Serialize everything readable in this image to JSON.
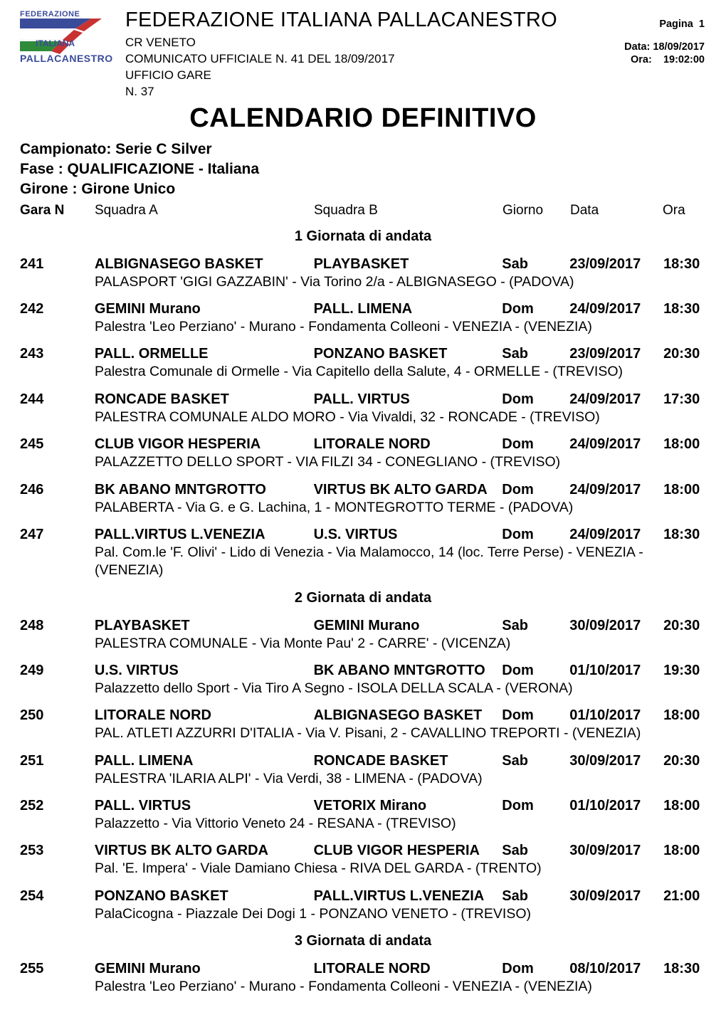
{
  "logo": {
    "line1": "FEDERAZIONE",
    "line2": "ITALIANA",
    "line3": "PALLACANESTRO",
    "colors": {
      "navy": "#3a4b9a",
      "red": "#c83232",
      "white": "#ffffff",
      "green": "#2f8b3a"
    }
  },
  "header": {
    "federation_title": "FEDERAZIONE ITALIANA PALLACANESTRO",
    "cr": "CR VENETO",
    "comunicato": "COMUNICATO UFFICIALE N. 41 DEL 18/09/2017",
    "ufficio": "UFFICIO GARE",
    "numero": "N. 37",
    "pagina_label": "Pagina",
    "pagina_value": "1",
    "data_label": "Data:",
    "data_value": "18/09/2017",
    "ora_label": "Ora:",
    "ora_value": "19:02:00"
  },
  "big_title": "CALENDARIO DEFINITIVO",
  "campionato": {
    "l1": "Campionato: Serie C Silver",
    "l2": "Fase : QUALIFICAZIONE - Italiana",
    "l3": "Girone : Girone Unico"
  },
  "columns": {
    "gara_n": "Gara N",
    "squadra_a": "Squadra A",
    "squadra_b": "Squadra B",
    "giorno": "Giorno",
    "data": "Data",
    "ora": "Ora"
  },
  "rounds": [
    {
      "title": "1 Giornata di andata",
      "matches": [
        {
          "n": "241",
          "home": "ALBIGNASEGO BASKET",
          "away": "PLAYBASKET",
          "day": "Sab",
          "date": "23/09/2017",
          "time": "18:30",
          "venue": "PALASPORT 'GIGI GAZZABIN' - Via Torino 2/a - ALBIGNASEGO - (PADOVA)"
        },
        {
          "n": "242",
          "home": "GEMINI Murano",
          "away": "PALL. LIMENA",
          "day": "Dom",
          "date": "24/09/2017",
          "time": "18:30",
          "venue": "Palestra 'Leo Perziano' - Murano - Fondamenta Colleoni - VENEZIA - (VENEZIA)"
        },
        {
          "n": "243",
          "home": "PALL. ORMELLE",
          "away": "PONZANO BASKET",
          "day": "Sab",
          "date": "23/09/2017",
          "time": "20:30",
          "venue": "Palestra Comunale di Ormelle - Via Capitello della Salute, 4 - ORMELLE - (TREVISO)"
        },
        {
          "n": "244",
          "home": "RONCADE BASKET",
          "away": "PALL. VIRTUS",
          "day": "Dom",
          "date": "24/09/2017",
          "time": "17:30",
          "venue": "PALESTRA COMUNALE ALDO MORO - Via Vivaldi, 32 - RONCADE - (TREVISO)"
        },
        {
          "n": "245",
          "home": "CLUB VIGOR HESPERIA",
          "away": "LITORALE NORD",
          "day": "Dom",
          "date": "24/09/2017",
          "time": "18:00",
          "venue": "PALAZZETTO DELLO SPORT - VIA FILZI 34 - CONEGLIANO - (TREVISO)"
        },
        {
          "n": "246",
          "home": "BK ABANO MNTGROTTO",
          "away": "VIRTUS BK ALTO GARDA",
          "day": "Dom",
          "date": "24/09/2017",
          "time": "18:00",
          "venue": "PALABERTA - Via  G. e G. Lachina,  1 - MONTEGROTTO TERME - (PADOVA)"
        },
        {
          "n": "247",
          "home": "PALL.VIRTUS L.VENEZIA",
          "away": "U.S. VIRTUS",
          "day": "Dom",
          "date": "24/09/2017",
          "time": "18:30",
          "venue": "Pal. Com.le 'F. Olivi' - Lido di Venezia - Via Malamocco, 14 (loc. Terre Perse) - VENEZIA - (VENEZIA)"
        }
      ]
    },
    {
      "title": "2 Giornata di andata",
      "matches": [
        {
          "n": "248",
          "home": "PLAYBASKET",
          "away": "GEMINI Murano",
          "day": "Sab",
          "date": "30/09/2017",
          "time": "20:30",
          "venue": "PALESTRA COMUNALE - Via Monte Pau' 2 - CARRE' - (VICENZA)"
        },
        {
          "n": "249",
          "home": "U.S. VIRTUS",
          "away": "BK ABANO MNTGROTTO",
          "day": "Dom",
          "date": "01/10/2017",
          "time": "19:30",
          "venue": "Palazzetto dello Sport - Via Tiro A Segno - ISOLA DELLA SCALA - (VERONA)"
        },
        {
          "n": "250",
          "home": "LITORALE NORD",
          "away": "ALBIGNASEGO BASKET",
          "day": "Dom",
          "date": "01/10/2017",
          "time": "18:00",
          "venue": "PAL.  ATLETI AZZURRI D'ITALIA - Via V. Pisani, 2 - CAVALLINO TREPORTI - (VENEZIA)"
        },
        {
          "n": "251",
          "home": "PALL. LIMENA",
          "away": "RONCADE BASKET",
          "day": "Sab",
          "date": "30/09/2017",
          "time": "20:30",
          "venue": "PALESTRA 'ILARIA ALPI' - Via Verdi, 38 - LIMENA - (PADOVA)"
        },
        {
          "n": "252",
          "home": "PALL. VIRTUS",
          "away": "VETORIX Mirano",
          "day": "Dom",
          "date": "01/10/2017",
          "time": "18:00",
          "venue": "Palazzetto - Via Vittorio Veneto 24 - RESANA - (TREVISO)"
        },
        {
          "n": "253",
          "home": "VIRTUS BK ALTO GARDA",
          "away": "CLUB VIGOR HESPERIA",
          "day": "Sab",
          "date": "30/09/2017",
          "time": "18:00",
          "venue": "Pal. 'E. Impera' - Viale Damiano Chiesa - RIVA DEL GARDA - (TRENTO)"
        },
        {
          "n": "254",
          "home": "PONZANO BASKET",
          "away": "PALL.VIRTUS L.VENEZIA",
          "day": "Sab",
          "date": "30/09/2017",
          "time": "21:00",
          "venue": "PalaCicogna - Piazzale Dei Dogi 1 - PONZANO VENETO - (TREVISO)"
        }
      ]
    },
    {
      "title": "3 Giornata di andata",
      "matches": [
        {
          "n": "255",
          "home": "GEMINI Murano",
          "away": "LITORALE NORD",
          "day": "Dom",
          "date": "08/10/2017",
          "time": "18:30",
          "venue": "Palestra 'Leo Perziano' - Murano - Fondamenta Colleoni - VENEZIA - (VENEZIA)"
        }
      ]
    }
  ]
}
